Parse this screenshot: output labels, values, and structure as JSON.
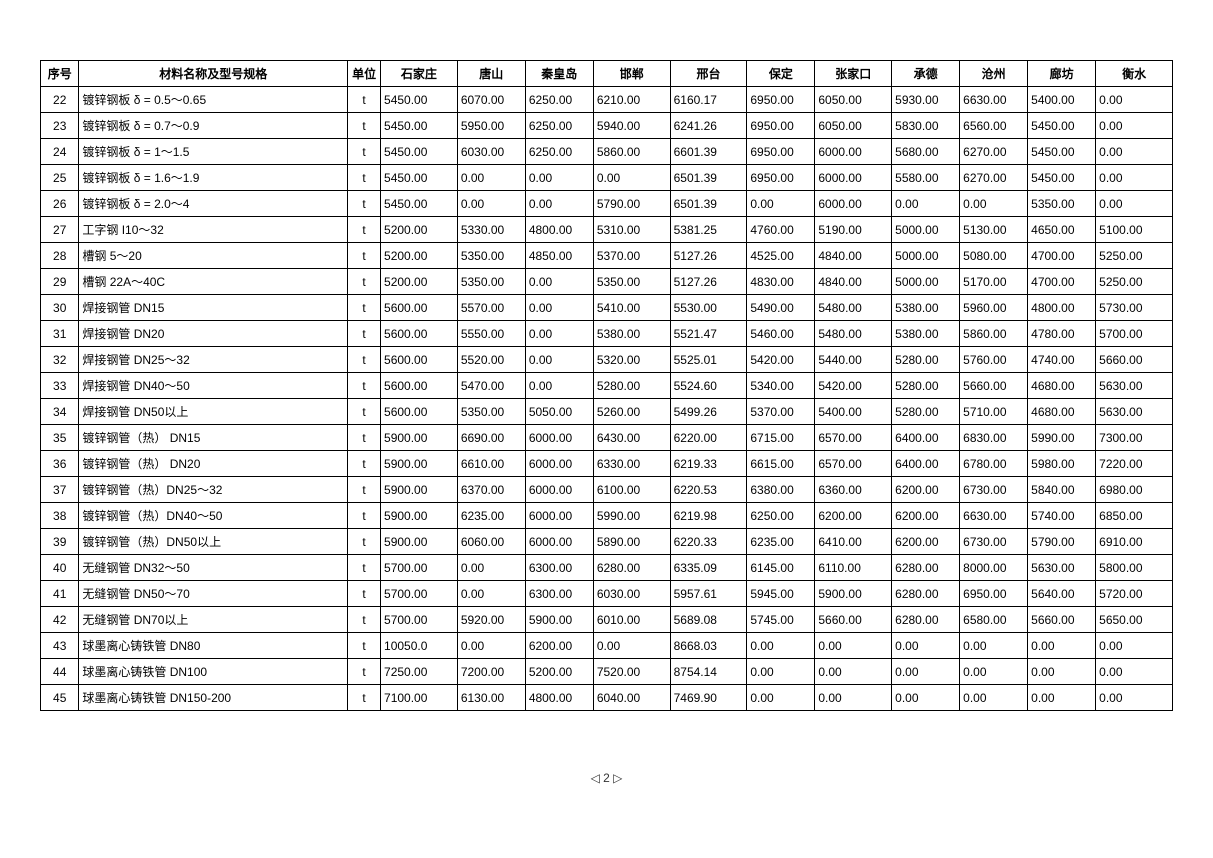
{
  "table": {
    "headers": [
      "序号",
      "材料名称及型号规格",
      "单位",
      "石家庄",
      "唐山",
      "秦皇岛",
      "邯郸",
      "邢台",
      "保定",
      "张家口",
      "承德",
      "沧州",
      "廊坊",
      "衡水"
    ],
    "rows": [
      {
        "seq": "22",
        "name": "镀锌钢板 δ = 0.5～0.65",
        "unit": "t",
        "vals": [
          "5450.00",
          "6070.00",
          "6250.00",
          "6210.00",
          "6160.17",
          "6950.00",
          "6050.00",
          "5930.00",
          "6630.00",
          "5400.00",
          "0.00"
        ]
      },
      {
        "seq": "23",
        "name": "镀锌钢板 δ = 0.7～0.9",
        "unit": "t",
        "vals": [
          "5450.00",
          "5950.00",
          "6250.00",
          "5940.00",
          "6241.26",
          "6950.00",
          "6050.00",
          "5830.00",
          "6560.00",
          "5450.00",
          "0.00"
        ]
      },
      {
        "seq": "24",
        "name": "镀锌钢板 δ = 1～1.5",
        "unit": "t",
        "vals": [
          "5450.00",
          "6030.00",
          "6250.00",
          "5860.00",
          "6601.39",
          "6950.00",
          "6000.00",
          "5680.00",
          "6270.00",
          "5450.00",
          "0.00"
        ]
      },
      {
        "seq": "25",
        "name": "镀锌钢板 δ = 1.6～1.9",
        "unit": "t",
        "vals": [
          "5450.00",
          "0.00",
          "0.00",
          "0.00",
          "6501.39",
          "6950.00",
          "6000.00",
          "5580.00",
          "6270.00",
          "5450.00",
          "0.00"
        ]
      },
      {
        "seq": "26",
        "name": "镀锌钢板 δ = 2.0～4",
        "unit": "t",
        "vals": [
          "5450.00",
          "0.00",
          "0.00",
          "5790.00",
          "6501.39",
          "0.00",
          "6000.00",
          "0.00",
          "0.00",
          "5350.00",
          "0.00"
        ]
      },
      {
        "seq": "27",
        "name": "工字钢 I10～32",
        "unit": "t",
        "vals": [
          "5200.00",
          "5330.00",
          "4800.00",
          "5310.00",
          "5381.25",
          "4760.00",
          "5190.00",
          "5000.00",
          "5130.00",
          "4650.00",
          "5100.00"
        ]
      },
      {
        "seq": "28",
        "name": "槽钢 5～20",
        "unit": "t",
        "vals": [
          "5200.00",
          "5350.00",
          "4850.00",
          "5370.00",
          "5127.26",
          "4525.00",
          "4840.00",
          "5000.00",
          "5080.00",
          "4700.00",
          "5250.00"
        ]
      },
      {
        "seq": "29",
        "name": "槽钢 22A～40C",
        "unit": "t",
        "vals": [
          "5200.00",
          "5350.00",
          "0.00",
          "5350.00",
          "5127.26",
          "4830.00",
          "4840.00",
          "5000.00",
          "5170.00",
          "4700.00",
          "5250.00"
        ]
      },
      {
        "seq": "30",
        "name": "焊接钢管 DN15",
        "unit": "t",
        "vals": [
          "5600.00",
          "5570.00",
          "0.00",
          "5410.00",
          "5530.00",
          "5490.00",
          "5480.00",
          "5380.00",
          "5960.00",
          "4800.00",
          "5730.00"
        ]
      },
      {
        "seq": "31",
        "name": "焊接钢管 DN20",
        "unit": "t",
        "vals": [
          "5600.00",
          "5550.00",
          "0.00",
          "5380.00",
          "5521.47",
          "5460.00",
          "5480.00",
          "5380.00",
          "5860.00",
          "4780.00",
          "5700.00"
        ]
      },
      {
        "seq": "32",
        "name": "焊接钢管 DN25～32",
        "unit": "t",
        "vals": [
          "5600.00",
          "5520.00",
          "0.00",
          "5320.00",
          "5525.01",
          "5420.00",
          "5440.00",
          "5280.00",
          "5760.00",
          "4740.00",
          "5660.00"
        ]
      },
      {
        "seq": "33",
        "name": "焊接钢管 DN40～50",
        "unit": "t",
        "vals": [
          "5600.00",
          "5470.00",
          "0.00",
          "5280.00",
          "5524.60",
          "5340.00",
          "5420.00",
          "5280.00",
          "5660.00",
          "4680.00",
          "5630.00"
        ]
      },
      {
        "seq": "34",
        "name": "焊接钢管 DN50以上",
        "unit": "t",
        "vals": [
          "5600.00",
          "5350.00",
          "5050.00",
          "5260.00",
          "5499.26",
          "5370.00",
          "5400.00",
          "5280.00",
          "5710.00",
          "4680.00",
          "5630.00"
        ]
      },
      {
        "seq": "35",
        "name": "镀锌钢管（热） DN15",
        "unit": "t",
        "vals": [
          "5900.00",
          "6690.00",
          "6000.00",
          "6430.00",
          "6220.00",
          "6715.00",
          "6570.00",
          "6400.00",
          "6830.00",
          "5990.00",
          "7300.00"
        ]
      },
      {
        "seq": "36",
        "name": "镀锌钢管（热） DN20",
        "unit": "t",
        "vals": [
          "5900.00",
          "6610.00",
          "6000.00",
          "6330.00",
          "6219.33",
          "6615.00",
          "6570.00",
          "6400.00",
          "6780.00",
          "5980.00",
          "7220.00"
        ]
      },
      {
        "seq": "37",
        "name": "镀锌钢管（热）DN25～32",
        "unit": "t",
        "vals": [
          "5900.00",
          "6370.00",
          "6000.00",
          "6100.00",
          "6220.53",
          "6380.00",
          "6360.00",
          "6200.00",
          "6730.00",
          "5840.00",
          "6980.00"
        ]
      },
      {
        "seq": "38",
        "name": "镀锌钢管（热）DN40～50",
        "unit": "t",
        "vals": [
          "5900.00",
          "6235.00",
          "6000.00",
          "5990.00",
          "6219.98",
          "6250.00",
          "6200.00",
          "6200.00",
          "6630.00",
          "5740.00",
          "6850.00"
        ]
      },
      {
        "seq": "39",
        "name": "镀锌钢管（热）DN50以上",
        "unit": "t",
        "vals": [
          "5900.00",
          "6060.00",
          "6000.00",
          "5890.00",
          "6220.33",
          "6235.00",
          "6410.00",
          "6200.00",
          "6730.00",
          "5790.00",
          "6910.00"
        ]
      },
      {
        "seq": "40",
        "name": "无缝钢管 DN32～50",
        "unit": "t",
        "vals": [
          "5700.00",
          "0.00",
          "6300.00",
          "6280.00",
          "6335.09",
          "6145.00",
          "6110.00",
          "6280.00",
          "8000.00",
          "5630.00",
          "5800.00"
        ]
      },
      {
        "seq": "41",
        "name": "无缝钢管 DN50～70",
        "unit": "t",
        "vals": [
          "5700.00",
          "0.00",
          "6300.00",
          "6030.00",
          "5957.61",
          "5945.00",
          "5900.00",
          "6280.00",
          "6950.00",
          "5640.00",
          "5720.00"
        ]
      },
      {
        "seq": "42",
        "name": "无缝钢管 DN70以上",
        "unit": "t",
        "vals": [
          "5700.00",
          "5920.00",
          "5900.00",
          "6010.00",
          "5689.08",
          "5745.00",
          "5660.00",
          "6280.00",
          "6580.00",
          "5660.00",
          "5650.00"
        ]
      },
      {
        "seq": "43",
        "name": "球墨离心铸铁管 DN80",
        "unit": "t",
        "vals": [
          "10050.0",
          "0.00",
          "6200.00",
          "0.00",
          "8668.03",
          "0.00",
          "0.00",
          "0.00",
          "0.00",
          "0.00",
          "0.00"
        ]
      },
      {
        "seq": "44",
        "name": "球墨离心铸铁管 DN100",
        "unit": "t",
        "vals": [
          "7250.00",
          "7200.00",
          "5200.00",
          "7520.00",
          "8754.14",
          "0.00",
          "0.00",
          "0.00",
          "0.00",
          "0.00",
          "0.00"
        ]
      },
      {
        "seq": "45",
        "name": "球墨离心铸铁管 DN150-200",
        "unit": "t",
        "vals": [
          "7100.00",
          "6130.00",
          "4800.00",
          "6040.00",
          "7469.90",
          "0.00",
          "0.00",
          "0.00",
          "0.00",
          "0.00",
          "0.00"
        ]
      }
    ]
  },
  "page": {
    "number": "2",
    "prefix": "◁ ",
    "suffix": " ▷"
  },
  "colors": {
    "border": "#000000",
    "background": "#ffffff",
    "text": "#000000",
    "watermark": "#eef5fa"
  },
  "typography": {
    "font_family": "Microsoft YaHei, SimSun, Arial, sans-serif",
    "font_size_cell": 12,
    "font_size_header": 12,
    "header_weight": "bold"
  },
  "column_widths": {
    "seq": 35,
    "name": 245,
    "unit": 30,
    "city_default": 62,
    "city_wide": 70
  }
}
